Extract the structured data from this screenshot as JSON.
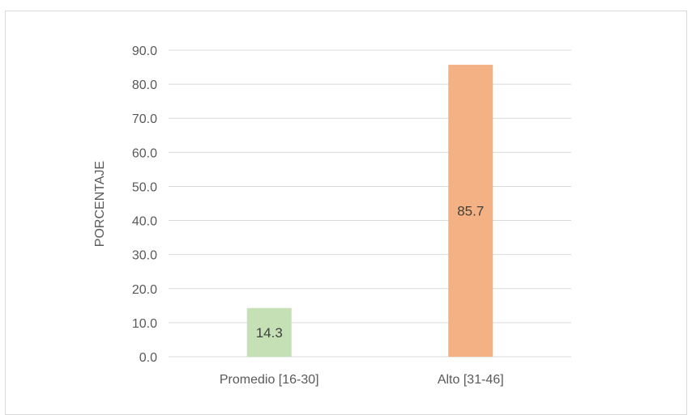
{
  "chart_data": {
    "type": "bar",
    "categories": [
      "Promedio [16-30]",
      "Alto [31-46]"
    ],
    "values": [
      14.3,
      85.7
    ],
    "data_labels": [
      "14.3",
      "85.7"
    ],
    "bar_colors": [
      "#c5e0b4",
      "#f4b183"
    ],
    "title": "",
    "xlabel": "",
    "ylabel": "PORCENTAJE",
    "ylim": [
      0,
      90
    ],
    "yticks": [
      "0.0",
      "10.0",
      "20.0",
      "30.0",
      "40.0",
      "50.0",
      "60.0",
      "70.0",
      "80.0",
      "90.0"
    ],
    "grid": true,
    "legend": "none"
  }
}
